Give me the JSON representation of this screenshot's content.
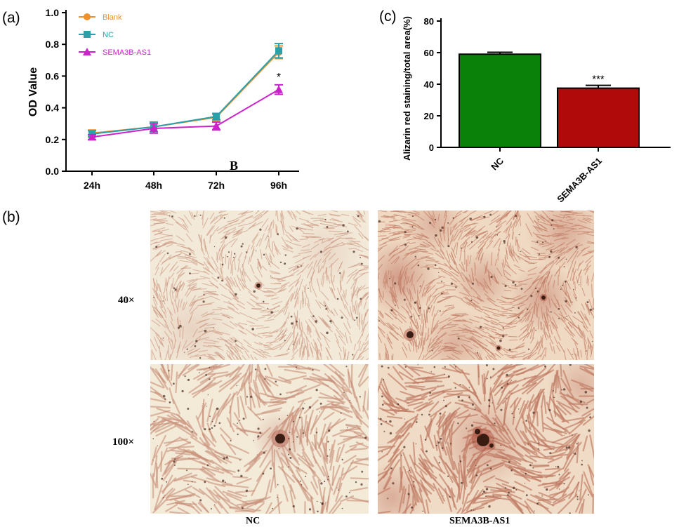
{
  "panel_labels": {
    "a": "(a)",
    "b": "(b)",
    "c": "(c)"
  },
  "panel_b": {
    "rows": [
      "40×",
      "100×"
    ],
    "cols": [
      "NC",
      "SEMA3B-AS1"
    ],
    "stray_letter": "B"
  },
  "colors": {
    "blank": "#f0902a",
    "nc_line": "#2aa0a8",
    "sema": "#cc22cc",
    "nc_bar": "#0a820a",
    "sema_bar": "#b00a0a",
    "tissue_bg": "#f1e7d3",
    "stain": "#b05545",
    "deposit": "#2a1208"
  },
  "chart_data": [
    {
      "type": "line",
      "title": "",
      "xlabel": "",
      "ylabel": "OD Value",
      "categories": [
        "24h",
        "48h",
        "72h",
        "96h"
      ],
      "ylim": [
        0.0,
        1.0
      ],
      "yticks": [
        "0.0",
        "0.2",
        "0.4",
        "0.6",
        "0.8",
        "1.0"
      ],
      "grid": false,
      "legend": "top-left",
      "series": [
        {
          "name": "Blank",
          "values": [
            0.24,
            0.28,
            0.34,
            0.75
          ],
          "errors": [
            0.02,
            0.03,
            0.02,
            0.04
          ],
          "marker": "circle"
        },
        {
          "name": "NC",
          "values": [
            0.235,
            0.28,
            0.345,
            0.76
          ],
          "errors": [
            0.02,
            0.03,
            0.02,
            0.045
          ],
          "marker": "square"
        },
        {
          "name": "SEMA3B-AS1",
          "values": [
            0.215,
            0.27,
            0.285,
            0.515
          ],
          "errors": [
            0.015,
            0.03,
            0.025,
            0.03
          ],
          "marker": "triangle"
        }
      ],
      "annotations": [
        {
          "category": "96h",
          "text": "*"
        }
      ]
    },
    {
      "type": "bar",
      "title": "",
      "xlabel": "",
      "ylabel": "Alizarin red staining/total area(%)",
      "categories": [
        "NC",
        "SEMA3B-AS1"
      ],
      "values": [
        59,
        37.5
      ],
      "errors": [
        1.2,
        1.8
      ],
      "ylim": [
        0,
        80
      ],
      "yticks": [
        "0",
        "20",
        "40",
        "60",
        "80"
      ],
      "grid": false,
      "annotations": [
        {
          "category": "SEMA3B-AS1",
          "text": "***"
        }
      ]
    }
  ]
}
